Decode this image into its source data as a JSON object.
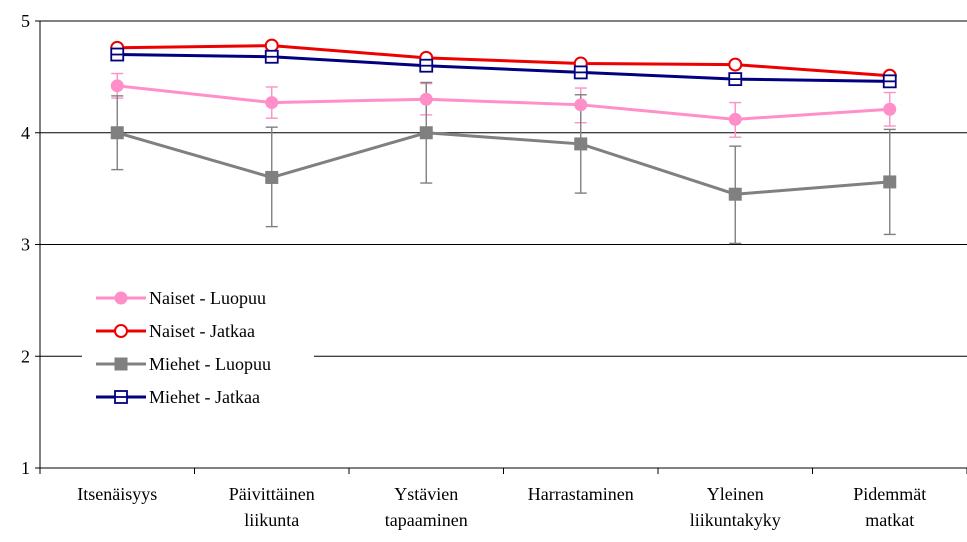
{
  "chart_data": {
    "type": "line",
    "title": "",
    "xlabel": "",
    "ylabel": "",
    "ylim": [
      1,
      5
    ],
    "yticks": [
      1,
      2,
      3,
      4,
      5
    ],
    "grid": "horizontal",
    "legend_position": "bottom-left",
    "categories": [
      [
        "Itsenäisyys"
      ],
      [
        "Päivittäinen",
        "liikunta"
      ],
      [
        "Ystävien",
        "tapaaminen"
      ],
      [
        "Harrastaminen"
      ],
      [
        "Yleinen",
        "liikuntakyky"
      ],
      [
        "Pidemmät",
        "matkat"
      ]
    ],
    "series": [
      {
        "name": "Naiset - Luopuu",
        "color": "#ff8fc8",
        "marker": "circle-filled",
        "values": [
          4.42,
          4.27,
          4.3,
          4.25,
          4.12,
          4.21
        ],
        "error_low": [
          4.31,
          4.13,
          4.16,
          4.09,
          3.96,
          4.06
        ],
        "error_high": [
          4.53,
          4.41,
          4.44,
          4.4,
          4.27,
          4.36
        ]
      },
      {
        "name": "Naiset - Jatkaa",
        "color": "#ee0000",
        "marker": "circle-open",
        "values": [
          4.76,
          4.78,
          4.67,
          4.62,
          4.61,
          4.51
        ],
        "error_low": [],
        "error_high": []
      },
      {
        "name": "Miehet - Luopuu",
        "color": "#808080",
        "marker": "square-filled",
        "values": [
          4.0,
          3.6,
          4.0,
          3.9,
          3.45,
          3.56
        ],
        "error_low": [
          3.67,
          3.16,
          3.55,
          3.46,
          3.01,
          3.09
        ],
        "error_high": [
          4.33,
          4.05,
          4.45,
          4.34,
          3.88,
          4.03
        ]
      },
      {
        "name": "Miehet - Jatkaa",
        "color": "#000080",
        "marker": "square-open",
        "values": [
          4.7,
          4.68,
          4.6,
          4.54,
          4.48,
          4.46
        ],
        "error_low": [],
        "error_high": []
      }
    ]
  }
}
